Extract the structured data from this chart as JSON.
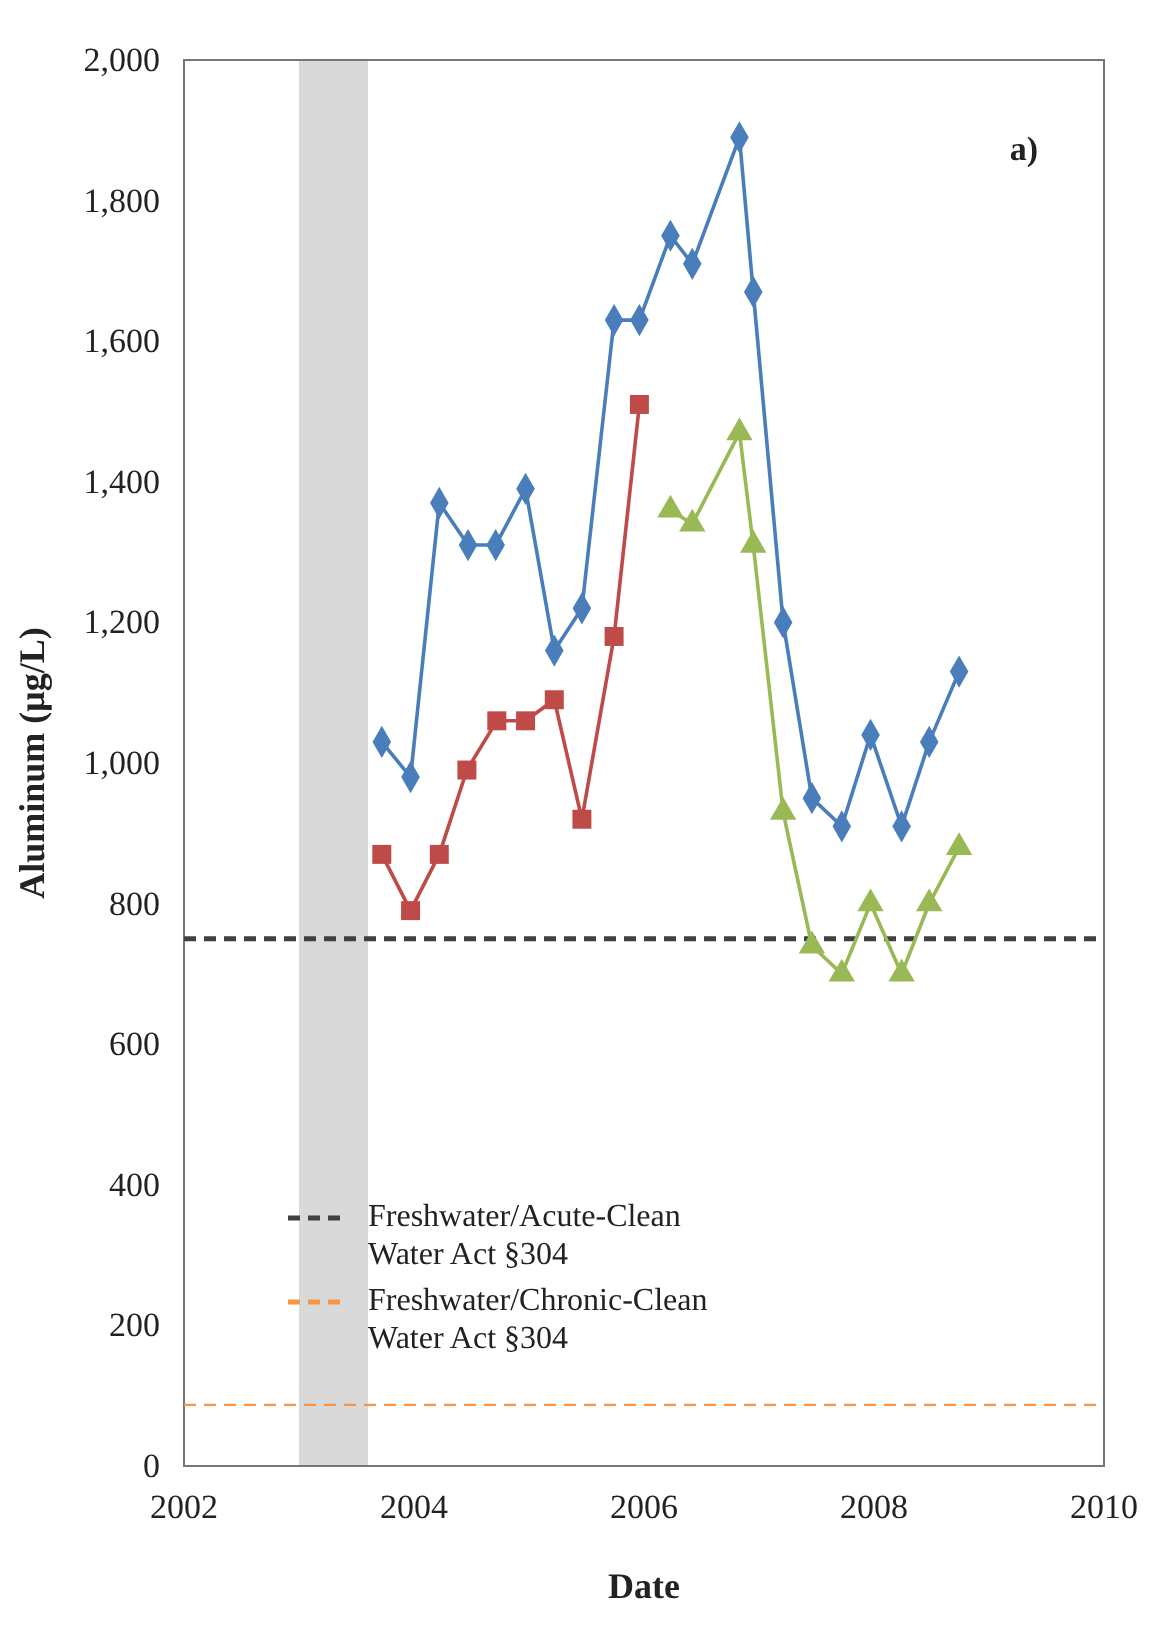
{
  "chart_data": {
    "type": "line",
    "xlabel": "Date",
    "ylabel": "Aluminum (μg/L)",
    "annotations": [
      "a)"
    ],
    "xlim": [
      2002,
      2010
    ],
    "xticks": [
      2002,
      2004,
      2006,
      2008,
      2010
    ],
    "ylim": [
      0,
      2000
    ],
    "yticks": [
      0,
      200,
      400,
      600,
      800,
      {
        "value": 1000,
        "label": "1,000"
      },
      {
        "value": 1200,
        "label": "1,200"
      },
      {
        "value": 1400,
        "label": "1,400"
      },
      {
        "value": 1600,
        "label": "1,600"
      },
      {
        "value": 1800,
        "label": "1,800"
      },
      {
        "value": 2000,
        "label": "2,000"
      }
    ],
    "grid": false,
    "legend": "bottom left",
    "line_style": "solid",
    "series": [
      {
        "color": "#4a7ebb",
        "marker": "diamond",
        "x": [
          2003.72,
          2003.97,
          2004.22,
          2004.47,
          2004.71,
          2004.97,
          2005.22,
          2005.46,
          2005.74,
          2005.96,
          2006.23,
          2006.42,
          2006.83,
          2006.95,
          2007.21,
          2007.46,
          2007.72,
          2007.97,
          2008.24,
          2008.48,
          2008.74
        ],
        "values": [
          1030,
          980,
          1370,
          1310,
          1310,
          1390,
          1160,
          1220,
          1630,
          1630,
          1750,
          1710,
          1890,
          1670,
          1200,
          950,
          910,
          1040,
          910,
          1030,
          1130
        ]
      },
      {
        "color": "#be4b48",
        "marker": "square",
        "x": [
          2003.72,
          2003.97,
          2004.22,
          2004.46,
          2004.72,
          2004.97,
          2005.22,
          2005.46,
          2005.74,
          2005.96
        ],
        "values": [
          870,
          790,
          870,
          990,
          1060,
          1060,
          1090,
          920,
          1180,
          1510
        ]
      },
      {
        "color": "#98b954",
        "marker": "triangle",
        "x": [
          2006.23,
          2006.42,
          2006.83,
          2006.95,
          2007.21,
          2007.46,
          2007.72,
          2007.97,
          2008.24,
          2008.48,
          2008.74
        ],
        "values": [
          1360,
          1340,
          1470,
          1310,
          930,
          740,
          700,
          800,
          700,
          800,
          880
        ]
      }
    ],
    "ref_lines": [
      {
        "axis": "y",
        "value": 750,
        "label": "Freshwater/Acute-Clean Water Act §304",
        "color": "#404040",
        "line_style": "dashed"
      },
      {
        "axis": "y",
        "value": 87,
        "label": "Freshwater/Chronic-Clean Water Act §304",
        "color": "#f79646",
        "line_style": "dashed"
      }
    ],
    "bands": [
      {
        "axis": "x",
        "from": 2003.0,
        "to": 2003.6,
        "color": "#d9d9d9"
      }
    ]
  }
}
